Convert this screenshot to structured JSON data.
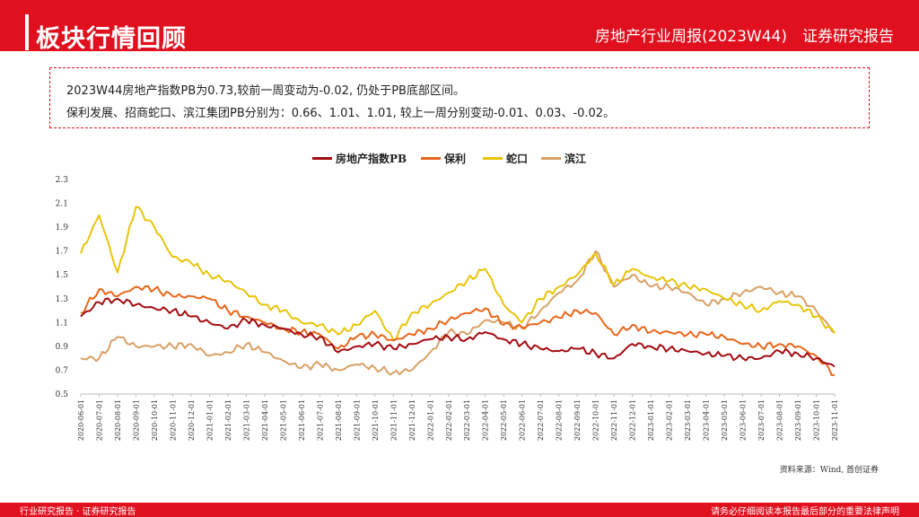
{
  "header": {
    "section_title": "板块行情回顾",
    "report_title": "房地产行业周报(2023W44)　证券研究报告"
  },
  "summary": {
    "line1": "2023W44房地产指数PB为0.73,较前一周变动为-0.02, 仍处于PB底部区间。",
    "line2": "保利发展、招商蛇口、滨江集团PB分别为：0.66、1.01、1.01, 较上一周分别变动-0.01、0.03、-0.02。"
  },
  "source": "资料来源：Wind, 首创证券",
  "footer": {
    "left": "行业研究报告 · 证券研究报告",
    "right": "请务必仔细阅读本报告最后部分的重要法律声明"
  },
  "colors": {
    "brand": "#e0101e",
    "index": "#a30d12",
    "poly": "#e8661a",
    "shekou": "#e8c40a",
    "binjiang": "#d9a066"
  },
  "chart_data": {
    "type": "line",
    "title": "",
    "xlabel": "",
    "ylabel": "",
    "ylim": [
      0.5,
      2.3
    ],
    "yticks": [
      "0.5",
      "0.7",
      "0.9",
      "1.1",
      "1.3",
      "1.5",
      "1.7",
      "1.9",
      "2.1",
      "2.3"
    ],
    "categories": [
      "2020-06-01",
      "2020-07-01",
      "2020-08-01",
      "2020-09-01",
      "2020-10-01",
      "2020-11-01",
      "2020-12-01",
      "2021-01-01",
      "2021-02-01",
      "2021-03-01",
      "2021-04-01",
      "2021-05-01",
      "2021-06-01",
      "2021-07-01",
      "2021-08-01",
      "2021-09-01",
      "2021-10-01",
      "2021-11-01",
      "2021-12-01",
      "2022-01-01",
      "2022-02-01",
      "2022-03-01",
      "2022-04-01",
      "2022-05-01",
      "2022-06-01",
      "2022-07-01",
      "2022-08-01",
      "2022-09-01",
      "2022-10-01",
      "2022-11-01",
      "2022-12-01",
      "2023-01-01",
      "2023-02-01",
      "2023-03-01",
      "2023-04-01",
      "2023-05-01",
      "2023-06-01",
      "2023-07-01",
      "2023-08-01",
      "2023-09-01",
      "2023-10-01",
      "2023-11-01"
    ],
    "series": [
      {
        "name": "房地产指数PB",
        "color_key": "index",
        "values": [
          1.15,
          1.27,
          1.3,
          1.25,
          1.22,
          1.2,
          1.15,
          1.1,
          1.05,
          1.12,
          1.08,
          1.05,
          1.0,
          0.98,
          0.85,
          0.9,
          0.92,
          0.88,
          0.92,
          0.96,
          0.98,
          0.96,
          1.02,
          0.96,
          0.92,
          0.88,
          0.86,
          0.88,
          0.84,
          0.8,
          0.92,
          0.9,
          0.88,
          0.86,
          0.84,
          0.82,
          0.8,
          0.8,
          0.86,
          0.84,
          0.8,
          0.73
        ]
      },
      {
        "name": "保利",
        "color_key": "poly",
        "values": [
          1.18,
          1.38,
          1.32,
          1.4,
          1.38,
          1.32,
          1.32,
          1.3,
          1.2,
          1.15,
          1.1,
          1.05,
          1.02,
          1.0,
          0.88,
          0.98,
          1.0,
          0.95,
          1.0,
          1.05,
          1.12,
          1.18,
          1.22,
          1.08,
          1.06,
          1.1,
          1.14,
          1.2,
          1.18,
          1.0,
          1.08,
          1.02,
          1.02,
          1.0,
          1.0,
          0.98,
          0.92,
          0.9,
          0.92,
          0.9,
          0.82,
          0.66
        ]
      },
      {
        "name": "蛇口",
        "color_key": "shekou",
        "values": [
          1.68,
          2.0,
          1.52,
          2.07,
          1.9,
          1.65,
          1.6,
          1.5,
          1.45,
          1.35,
          1.25,
          1.2,
          1.1,
          1.08,
          1.0,
          1.08,
          1.2,
          0.95,
          1.18,
          1.25,
          1.35,
          1.45,
          1.55,
          1.25,
          1.1,
          1.3,
          1.4,
          1.5,
          1.68,
          1.42,
          1.55,
          1.48,
          1.45,
          1.4,
          1.38,
          1.3,
          1.25,
          1.2,
          1.28,
          1.25,
          1.15,
          1.01
        ]
      },
      {
        "name": "滨江",
        "color_key": "binjiang",
        "values": [
          0.8,
          0.8,
          0.98,
          0.9,
          0.9,
          0.9,
          0.92,
          0.82,
          0.85,
          0.92,
          0.85,
          0.78,
          0.72,
          0.75,
          0.7,
          0.75,
          0.72,
          0.68,
          0.7,
          0.85,
          1.02,
          1.0,
          1.12,
          1.1,
          1.05,
          1.2,
          1.35,
          1.45,
          1.7,
          1.4,
          1.5,
          1.4,
          1.4,
          1.35,
          1.25,
          1.3,
          1.35,
          1.4,
          1.35,
          1.32,
          1.2,
          1.01
        ]
      }
    ]
  }
}
